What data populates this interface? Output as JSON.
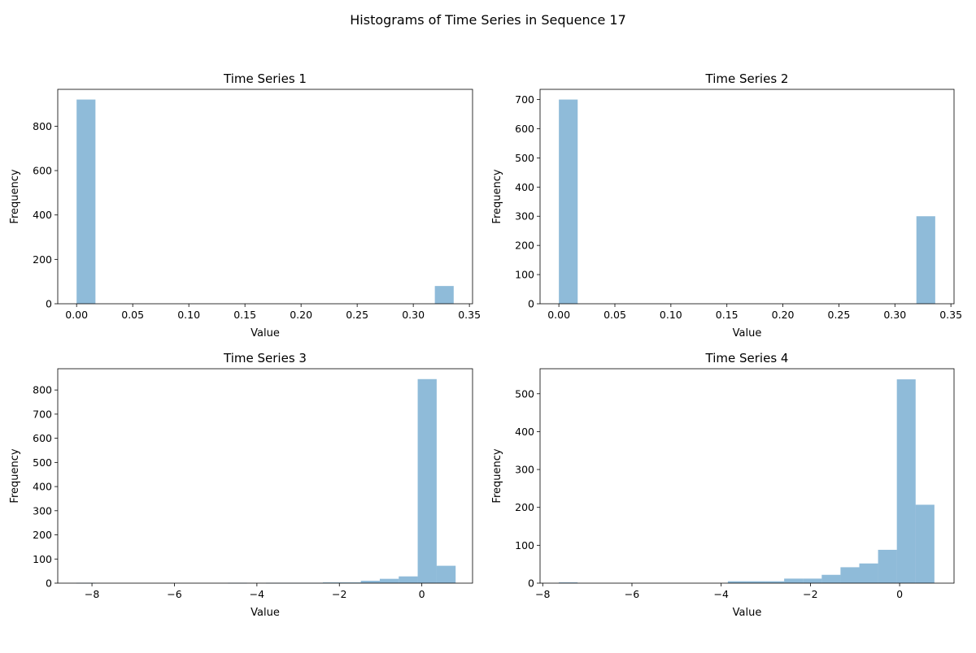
{
  "figure": {
    "suptitle": "Histograms of Time Series in Sequence 17"
  },
  "colors": {
    "bar": "#1f77b4",
    "bar_alpha": 0.5
  },
  "chart_data": [
    {
      "type": "bar",
      "title": "Time Series 1",
      "xlabel": "Value",
      "ylabel": "Frequency",
      "xlim": [
        -0.0168,
        0.3528
      ],
      "ylim": [
        0,
        966
      ],
      "xticks": [
        0.0,
        0.05,
        0.1,
        0.15,
        0.2,
        0.25,
        0.3,
        0.35
      ],
      "xtick_labels": [
        "0.00",
        "0.05",
        "0.10",
        "0.15",
        "0.20",
        "0.25",
        "0.30",
        "0.35"
      ],
      "yticks": [
        0,
        200,
        400,
        600,
        800
      ],
      "bin_start": 0.0,
      "bin_width": 0.0168,
      "values": [
        920,
        0,
        0,
        0,
        0,
        0,
        0,
        0,
        0,
        0,
        0,
        0,
        0,
        0,
        0,
        0,
        0,
        0,
        0,
        80
      ]
    },
    {
      "type": "bar",
      "title": "Time Series 2",
      "xlabel": "Value",
      "ylabel": "Frequency",
      "xlim": [
        -0.0168,
        0.3528
      ],
      "ylim": [
        0,
        735
      ],
      "xticks": [
        0.0,
        0.05,
        0.1,
        0.15,
        0.2,
        0.25,
        0.3,
        0.35
      ],
      "xtick_labels": [
        "0.00",
        "0.05",
        "0.10",
        "0.15",
        "0.20",
        "0.25",
        "0.30",
        "0.35"
      ],
      "yticks": [
        0,
        100,
        200,
        300,
        400,
        500,
        600,
        700
      ],
      "bin_start": 0.0,
      "bin_width": 0.0168,
      "values": [
        700,
        0,
        0,
        0,
        0,
        0,
        0,
        0,
        0,
        0,
        0,
        0,
        0,
        0,
        0,
        0,
        0,
        0,
        0,
        300
      ]
    },
    {
      "type": "bar",
      "title": "Time Series 3",
      "xlabel": "Value",
      "ylabel": "Frequency",
      "xlim": [
        -8.83,
        1.23
      ],
      "ylim": [
        0,
        888
      ],
      "xticks": [
        -8,
        -6,
        -4,
        -2,
        0
      ],
      "xtick_labels": [
        "−8",
        "−6",
        "−4",
        "−2",
        "0"
      ],
      "yticks": [
        0,
        100,
        200,
        300,
        400,
        500,
        600,
        700,
        800
      ],
      "bin_start": -8.38,
      "bin_width": 0.46,
      "values": [
        1,
        0,
        0,
        0,
        0,
        0,
        0,
        0,
        1,
        0,
        1,
        1,
        1,
        3,
        3,
        10,
        18,
        28,
        845,
        72
      ]
    },
    {
      "type": "bar",
      "title": "Time Series 4",
      "xlabel": "Value",
      "ylabel": "Frequency",
      "xlim": [
        -8.06,
        1.22
      ],
      "ylim": [
        0,
        566
      ],
      "xticks": [
        -8,
        -6,
        -4,
        -2,
        0
      ],
      "xtick_labels": [
        "−8",
        "−6",
        "−4",
        "−2",
        "0"
      ],
      "yticks": [
        0,
        100,
        200,
        300,
        400,
        500
      ],
      "bin_start": -7.64,
      "bin_width": 0.421,
      "values": [
        2,
        0,
        0,
        0,
        0,
        0,
        0,
        0,
        0,
        5,
        5,
        5,
        12,
        12,
        22,
        42,
        52,
        88,
        538,
        207
      ]
    }
  ]
}
